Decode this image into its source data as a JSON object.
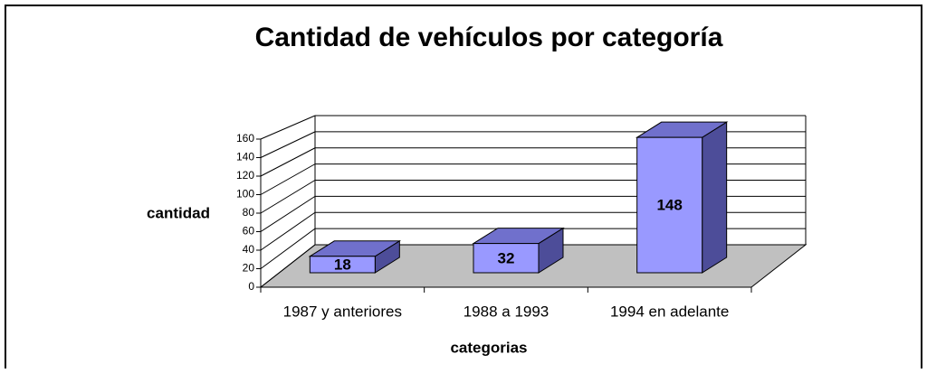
{
  "chart_data": {
    "type": "bar3d",
    "title": "Cantidad de vehículos por categoría",
    "categories": [
      "1987 y anteriores",
      "1988 a 1993",
      "1994 en adelante"
    ],
    "values": [
      18,
      32,
      148
    ],
    "color": "#9999ff",
    "ylabel": "cantidad",
    "xlabel": "categorias",
    "ylim": [
      0,
      160
    ],
    "yticks": [
      0,
      20,
      40,
      60,
      80,
      100,
      120,
      140,
      160
    ],
    "grid": true
  }
}
